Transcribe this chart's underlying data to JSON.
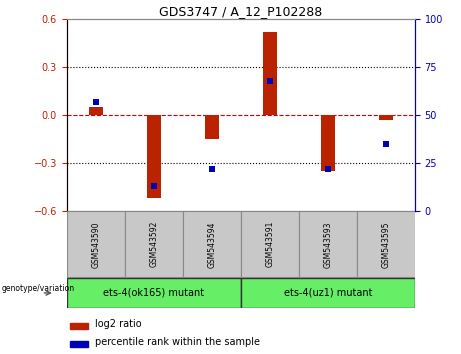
{
  "title": "GDS3747 / A_12_P102288",
  "samples": [
    "GSM543590",
    "GSM543592",
    "GSM543594",
    "GSM543591",
    "GSM543593",
    "GSM543595"
  ],
  "log2_ratio": [
    0.05,
    -0.52,
    -0.15,
    0.52,
    -0.35,
    -0.03
  ],
  "percentile_rank": [
    57,
    13,
    22,
    68,
    22,
    35
  ],
  "ylim_left": [
    -0.6,
    0.6
  ],
  "ylim_right": [
    0,
    100
  ],
  "yticks_left": [
    -0.6,
    -0.3,
    0,
    0.3,
    0.6
  ],
  "yticks_right": [
    0,
    25,
    50,
    75,
    100
  ],
  "groups": [
    {
      "label": "ets-4(ok165) mutant",
      "color": "#66ee66"
    },
    {
      "label": "ets-4(uz1) mutant",
      "color": "#66ee66"
    }
  ],
  "bar_color": "#bb2200",
  "dot_color": "#0000bb",
  "zero_line_color": "#cc0000",
  "grid_color": "#000000",
  "bg_color": "#ffffff",
  "plot_bg_color": "#ffffff",
  "tick_bg_color": "#c8c8c8",
  "genotype_label": "genotype/variation",
  "legend_log2": "log2 ratio",
  "legend_pct": "percentile rank within the sample",
  "bar_width": 0.25,
  "dot_size": 25
}
